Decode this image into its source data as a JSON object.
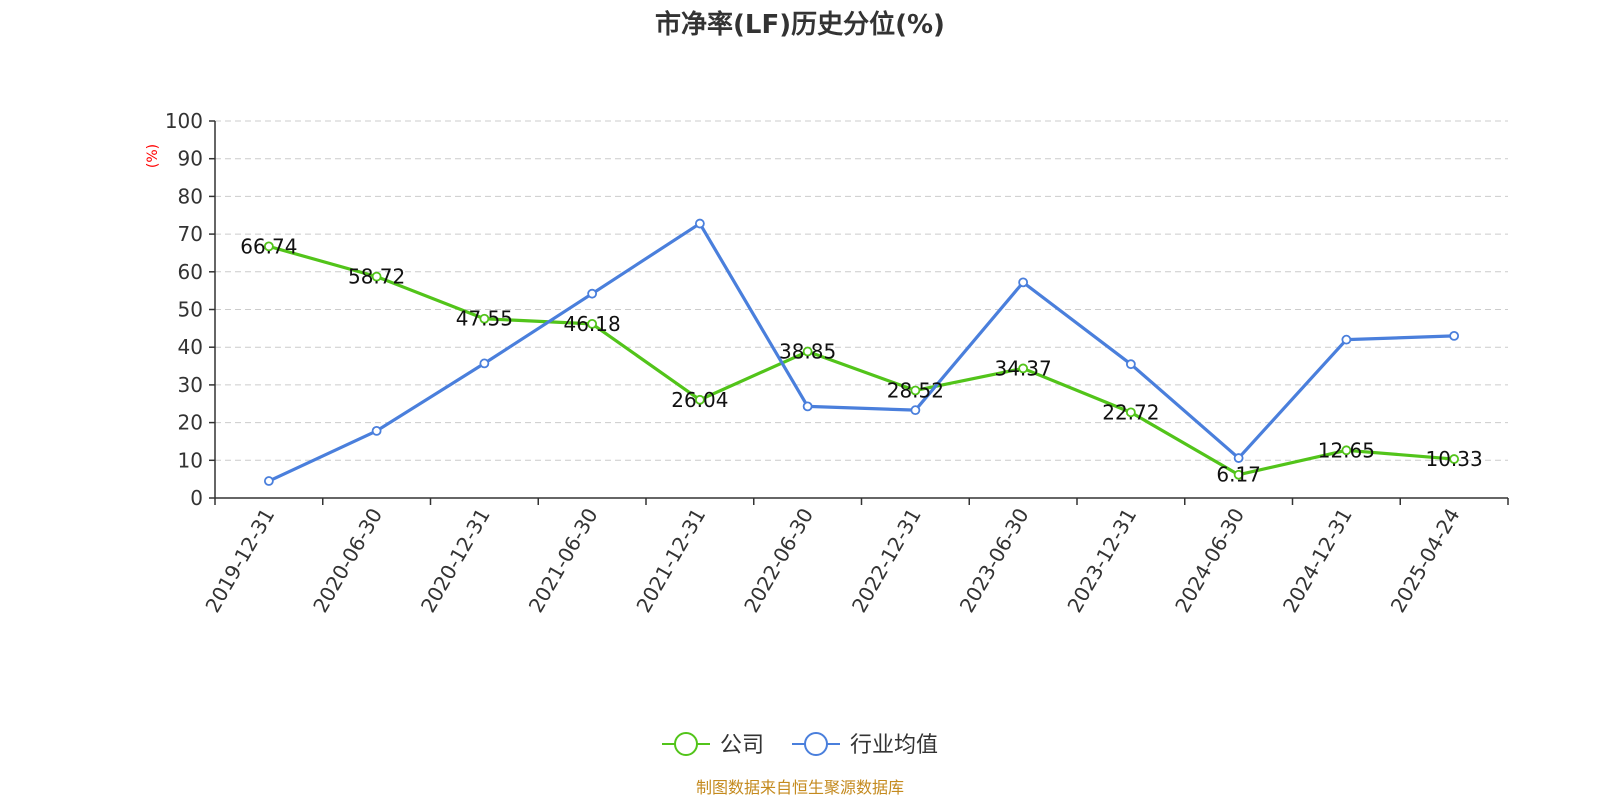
{
  "chart_data": {
    "type": "line",
    "title": "市净率(LF)历史分位(%)",
    "ylabel": "(%)",
    "ylim": [
      0,
      100
    ],
    "yticks": [
      0,
      10,
      20,
      30,
      40,
      50,
      60,
      70,
      80,
      90,
      100
    ],
    "categories": [
      "2019-12-31",
      "2020-06-30",
      "2020-12-31",
      "2021-06-30",
      "2021-12-31",
      "2022-06-30",
      "2022-12-31",
      "2023-06-30",
      "2023-12-31",
      "2024-06-30",
      "2024-12-31",
      "2025-04-24"
    ],
    "series": [
      {
        "name": "公司",
        "color": "#52c41a",
        "show_labels": true,
        "values": [
          66.74,
          58.72,
          47.55,
          46.18,
          26.04,
          38.85,
          28.52,
          34.37,
          22.72,
          6.17,
          12.65,
          10.33
        ]
      },
      {
        "name": "行业均值",
        "color": "#4a7fdc",
        "show_labels": false,
        "values": [
          4.5,
          17.8,
          35.7,
          54.2,
          72.8,
          24.3,
          23.3,
          57.2,
          35.5,
          10.6,
          42.0,
          43.0
        ]
      }
    ],
    "grid": true,
    "grid_style": "dashed",
    "legend_position": "bottom-center",
    "source": "制图数据来自恒生聚源数据库"
  }
}
